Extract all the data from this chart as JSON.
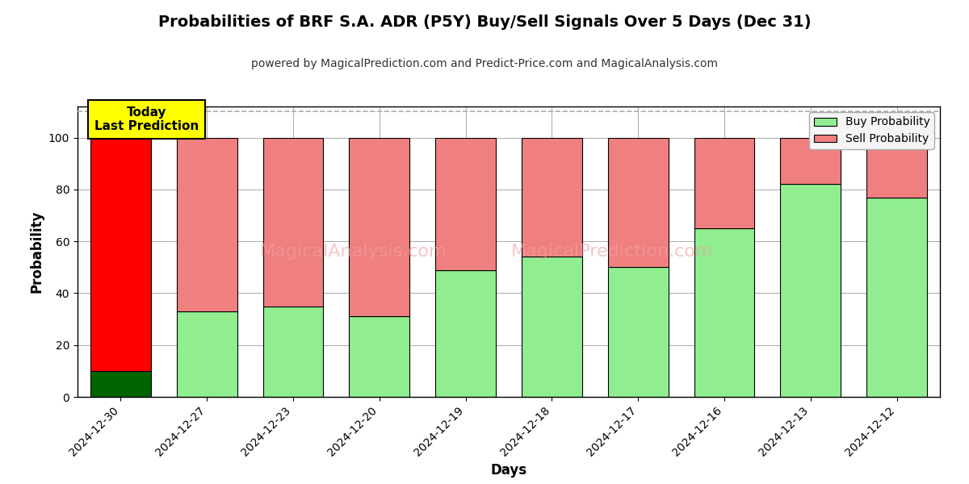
{
  "title": "Probabilities of BRF S.A. ADR (P5Y) Buy/Sell Signals Over 5 Days (Dec 31)",
  "subtitle": "powered by MagicalPrediction.com and Predict-Price.com and MagicalAnalysis.com",
  "xlabel": "Days",
  "ylabel": "Probability",
  "categories": [
    "2024-12-30",
    "2024-12-27",
    "2024-12-23",
    "2024-12-20",
    "2024-12-19",
    "2024-12-18",
    "2024-12-17",
    "2024-12-16",
    "2024-12-13",
    "2024-12-12"
  ],
  "buy_values": [
    10,
    33,
    35,
    31,
    49,
    54,
    50,
    65,
    82,
    77
  ],
  "sell_values": [
    90,
    67,
    65,
    69,
    51,
    46,
    50,
    35,
    18,
    23
  ],
  "today_buy_color": "#006400",
  "today_sell_color": "#ff0000",
  "buy_color": "#90ee90",
  "sell_color": "#f08080",
  "buy_legend": "Buy Probability",
  "sell_legend": "Sell Probability",
  "today_label_line1": "Today",
  "today_label_line2": "Last Prediction",
  "today_box_color": "#ffff00",
  "today_box_text_color": "#000000",
  "ylim": [
    0,
    112
  ],
  "yticks": [
    0,
    20,
    40,
    60,
    80,
    100
  ],
  "dashed_line_y": 110,
  "bar_edgecolor": "#000000",
  "bar_linewidth": 0.8,
  "grid_color": "#aaaaaa",
  "background_color": "#ffffff",
  "figsize": [
    12,
    6
  ],
  "dpi": 100
}
